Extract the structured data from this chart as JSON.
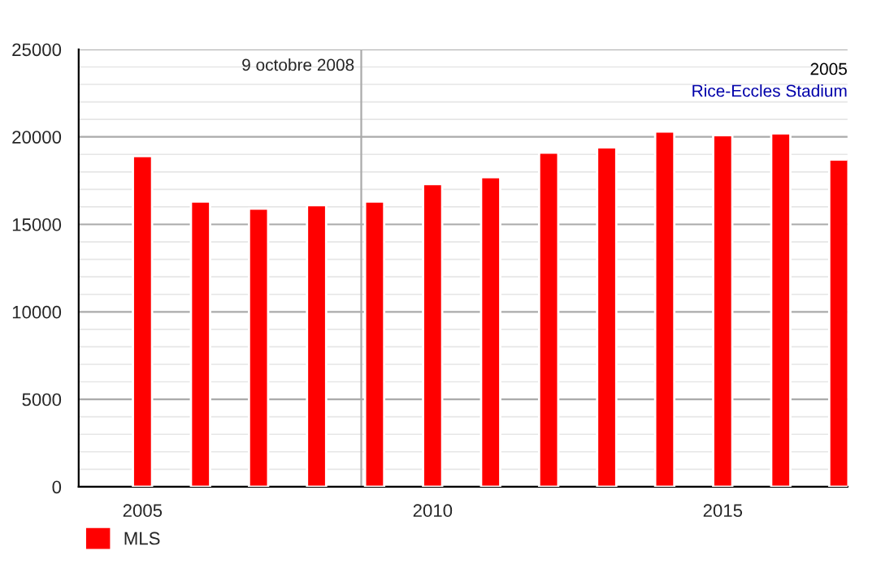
{
  "chart_data": {
    "type": "bar",
    "x": [
      2005,
      2006,
      2007,
      2008,
      2009,
      2010,
      2011,
      2012,
      2013,
      2014,
      2015,
      2016,
      2017
    ],
    "series": [
      {
        "name": "MLS",
        "color": "#ff0000",
        "values": [
          18900,
          16300,
          15900,
          16100,
          16300,
          17300,
          17700,
          19100,
          19400,
          20300,
          20100,
          20200,
          18700
        ]
      }
    ],
    "xlim": [
      2003.9,
      2017.15
    ],
    "xticks": [
      2005,
      2010,
      2015
    ],
    "ylim": [
      0,
      25000
    ],
    "yticks": [
      0,
      5000,
      10000,
      15000,
      20000,
      25000
    ],
    "ref_lines": [
      {
        "axis": "x",
        "value": 2008.77,
        "label": "9 octobre 2008",
        "color": "#aaaaaa"
      }
    ],
    "annotations": [
      "2005",
      "Rice-Eccles Stadium"
    ],
    "grid": "y",
    "legend": "bottom left"
  }
}
